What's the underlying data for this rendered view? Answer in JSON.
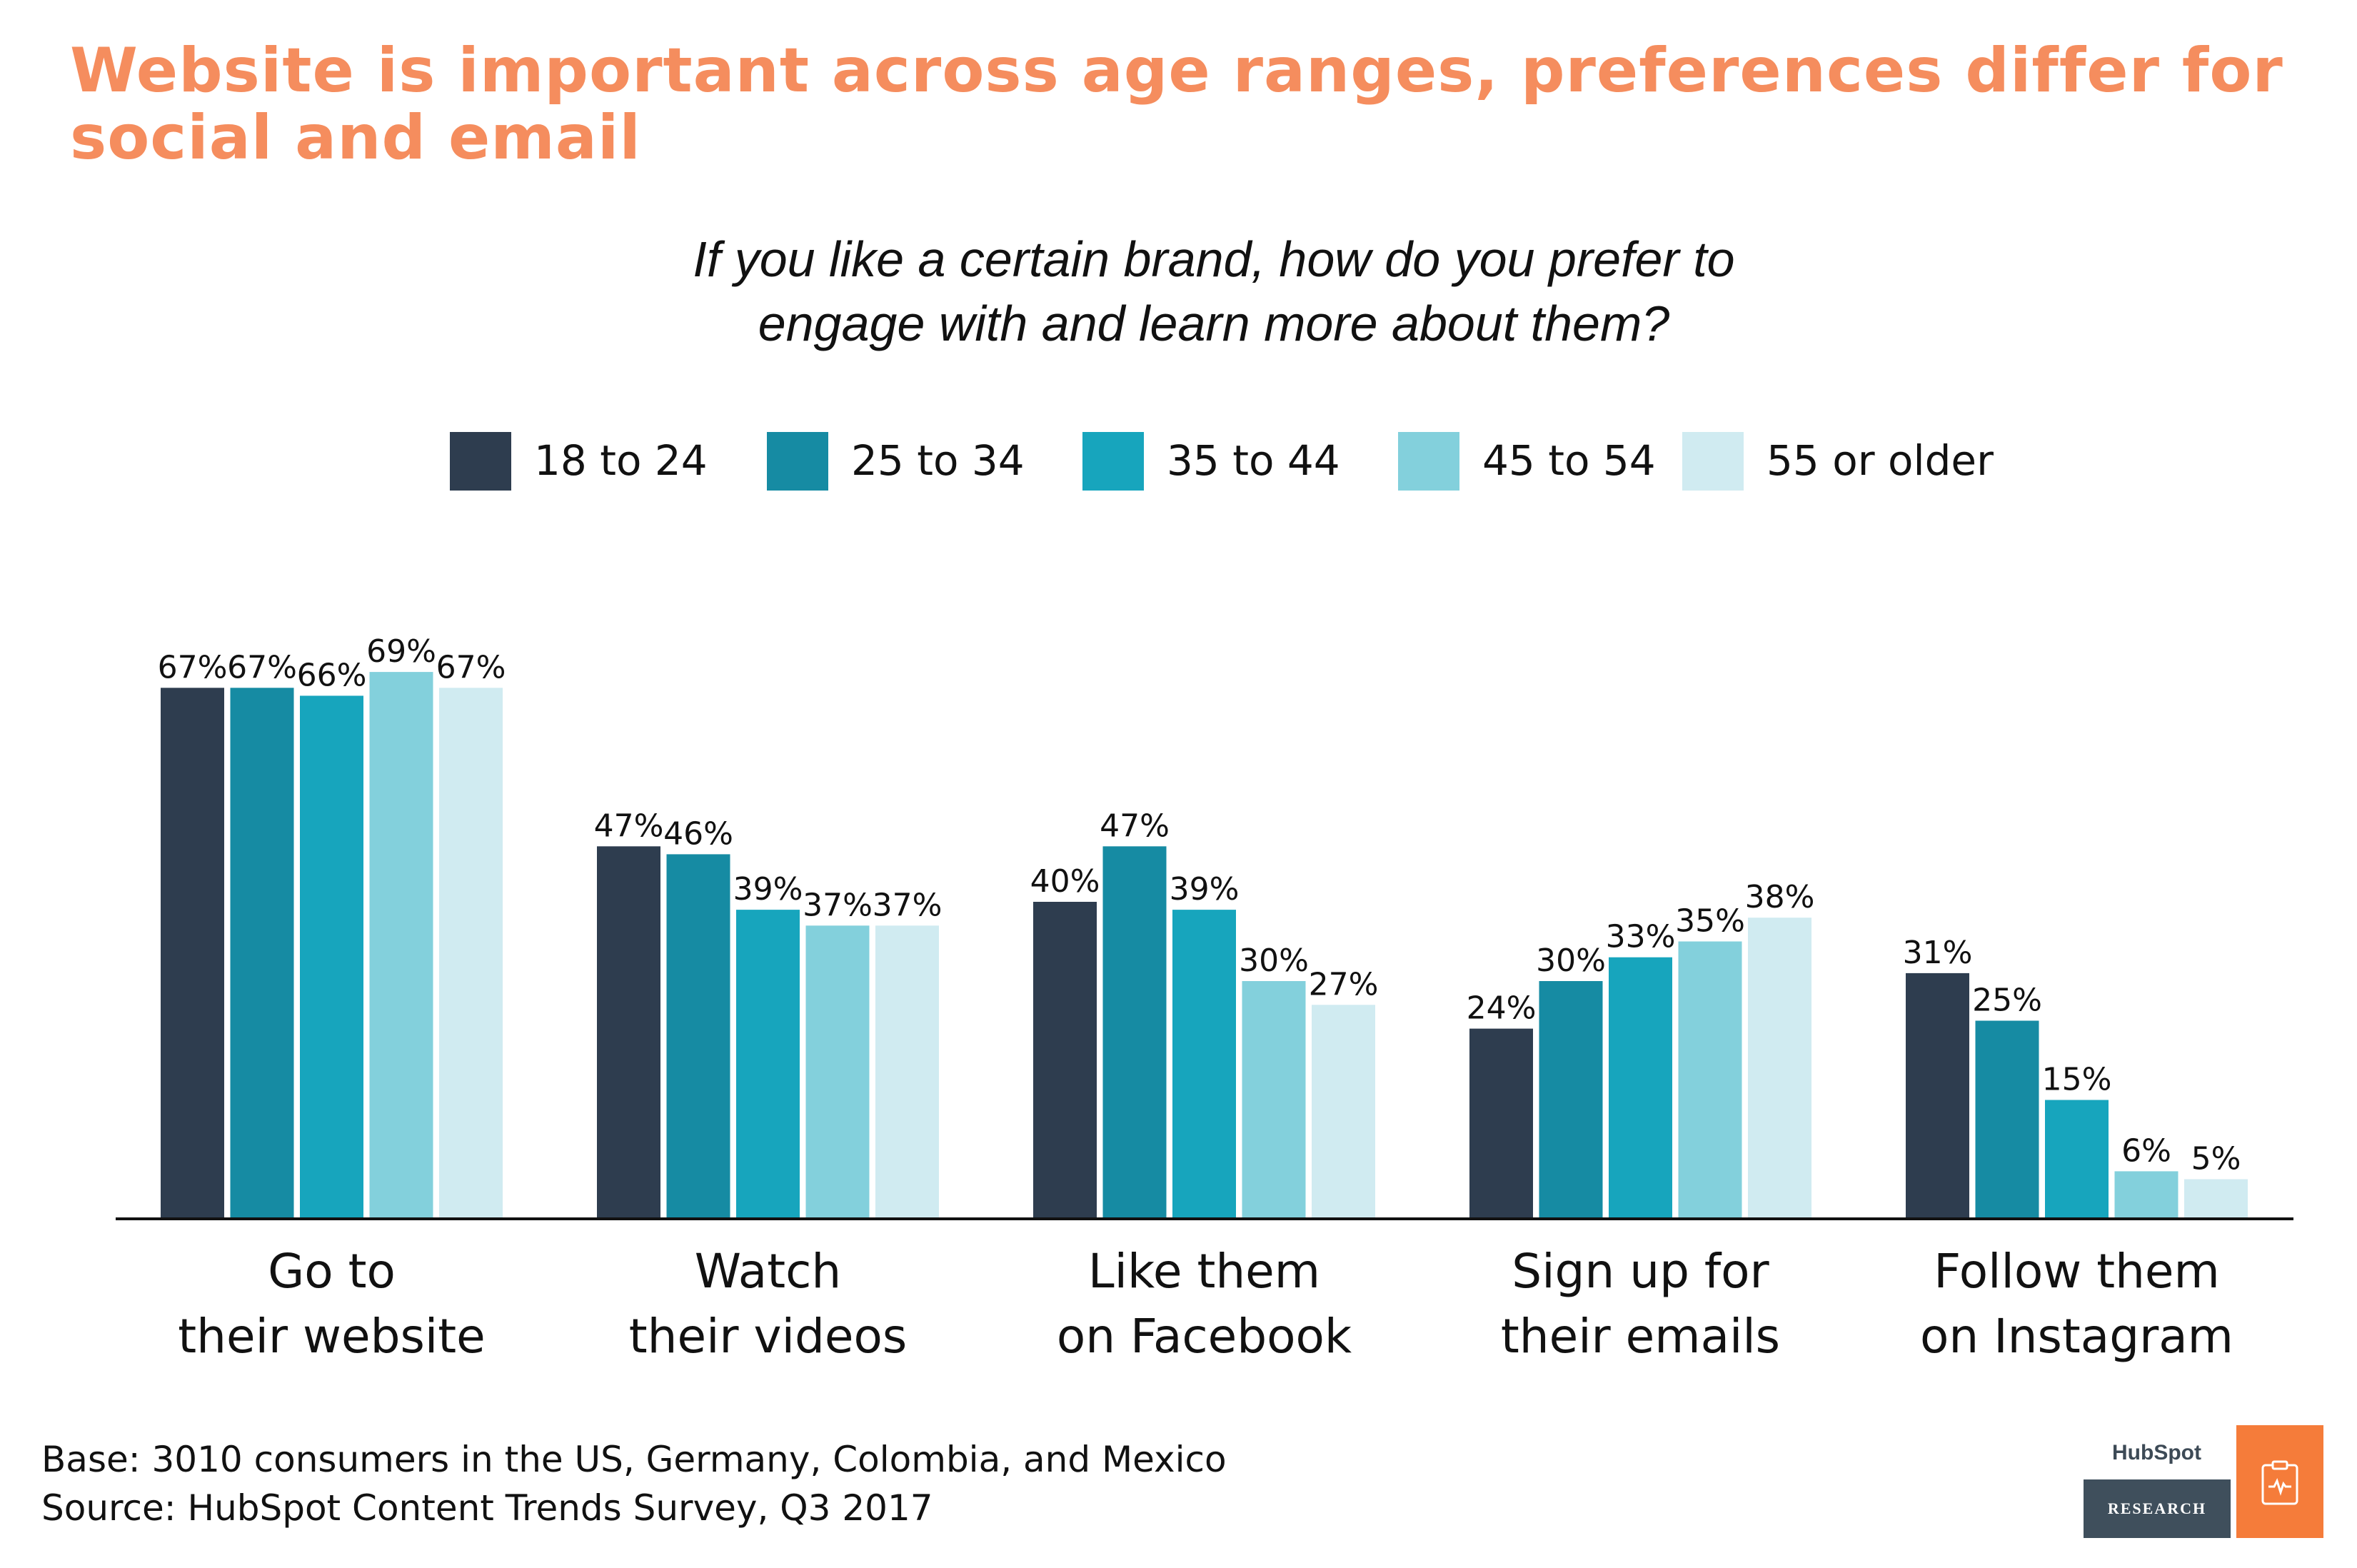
{
  "title": "Website is important across age ranges, preferences differ for social and email",
  "subtitle_lines": [
    "If you like a certain brand, how do you prefer to",
    "engage with and learn more about them?"
  ],
  "chart_data": {
    "type": "bar",
    "categories": [
      [
        "Go to",
        "their website"
      ],
      [
        "Watch",
        "their videos"
      ],
      [
        "Like them",
        "on Facebook"
      ],
      [
        "Sign up for",
        "their emails"
      ],
      [
        "Follow them",
        "on Instagram"
      ]
    ],
    "series": [
      {
        "name": "18 to 24",
        "color": "#2e3d4f",
        "values": [
          67,
          47,
          40,
          24,
          31
        ]
      },
      {
        "name": "25 to 34",
        "color": "#168ba3",
        "values": [
          67,
          46,
          47,
          30,
          25
        ]
      },
      {
        "name": "35 to 44",
        "color": "#17a5bd",
        "values": [
          66,
          39,
          39,
          33,
          15
        ]
      },
      {
        "name": "45 to 54",
        "color": "#83d0dc",
        "values": [
          69,
          37,
          30,
          35,
          6
        ]
      },
      {
        "name": "55 or older",
        "color": "#d0ebf1",
        "values": [
          67,
          37,
          27,
          38,
          5
        ]
      }
    ],
    "value_suffix": "%",
    "legend_position": "top",
    "grid": false
  },
  "footer": {
    "base": "Base: 3010 consumers in the US, Germany, Colombia, and Mexico",
    "source": "Source: HubSpot Content Trends Survey, Q3 2017"
  },
  "logo": {
    "brand": "HubSpot",
    "label": "RESEARCH"
  }
}
